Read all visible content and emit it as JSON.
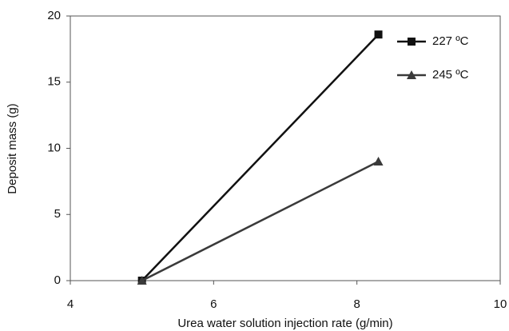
{
  "chart_data": {
    "type": "line",
    "x_label": "Urea water solution injection rate (g/min)",
    "y_label": "Deposit mass (g)",
    "x": [
      5,
      8.3
    ],
    "series": [
      {
        "name": "227 ºC",
        "color": "#111111",
        "marker": "square",
        "values": [
          0,
          18.6
        ]
      },
      {
        "name": "245 ºC",
        "color": "#3a3a3a",
        "marker": "triangle",
        "values": [
          0,
          9.0
        ]
      }
    ],
    "xlim": [
      4,
      10
    ],
    "xticks": [
      4,
      6,
      8,
      10
    ],
    "ylim": [
      0,
      20
    ],
    "yticks": [
      0,
      5,
      10,
      15,
      20
    ],
    "grid": false,
    "legend": "upper-right"
  }
}
